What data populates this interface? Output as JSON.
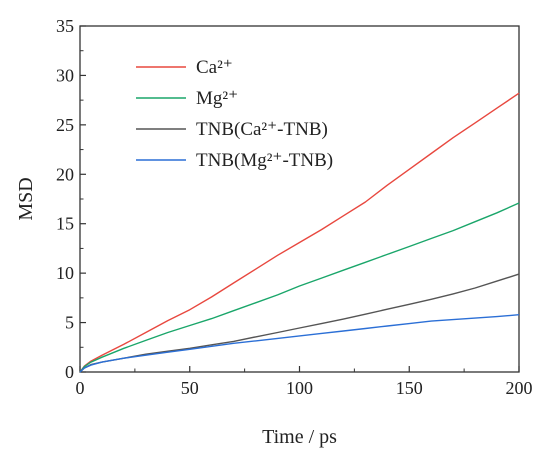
{
  "chart_data": {
    "type": "line",
    "title": "",
    "xlabel": "Time / ps",
    "ylabel": "MSD",
    "xlim": [
      0,
      200
    ],
    "ylim": [
      0,
      35
    ],
    "xticks": [
      0,
      50,
      100,
      150,
      200
    ],
    "yticks": [
      0,
      5,
      10,
      15,
      20,
      25,
      30,
      35
    ],
    "grid": false,
    "legend_position": "top-left",
    "series": [
      {
        "name": "Ca²⁺",
        "color": "#e8483f",
        "x": [
          0,
          2,
          5,
          10,
          20,
          30,
          40,
          50,
          60,
          70,
          80,
          90,
          100,
          110,
          120,
          130,
          140,
          150,
          160,
          170,
          180,
          190,
          200
        ],
        "y": [
          0,
          0.6,
          1.1,
          1.7,
          2.8,
          4.0,
          5.2,
          6.3,
          7.6,
          9.0,
          10.4,
          11.8,
          13.1,
          14.4,
          15.8,
          17.2,
          18.9,
          20.5,
          22.1,
          23.7,
          25.2,
          26.7,
          28.2
        ]
      },
      {
        "name": "Mg²⁺",
        "color": "#1aa66a",
        "x": [
          0,
          2,
          5,
          10,
          20,
          30,
          40,
          50,
          60,
          70,
          80,
          90,
          100,
          110,
          120,
          130,
          140,
          150,
          160,
          170,
          180,
          190,
          200
        ],
        "y": [
          0,
          0.55,
          1.0,
          1.5,
          2.4,
          3.2,
          4.0,
          4.7,
          5.4,
          6.2,
          7.0,
          7.8,
          8.7,
          9.5,
          10.3,
          11.1,
          11.9,
          12.7,
          13.5,
          14.3,
          15.2,
          16.1,
          17.1
        ]
      },
      {
        "name": "TNB(Ca²⁺-TNB)",
        "color": "#555555",
        "x": [
          0,
          2,
          5,
          10,
          20,
          30,
          40,
          50,
          60,
          70,
          80,
          90,
          100,
          110,
          120,
          130,
          140,
          150,
          160,
          170,
          180,
          190,
          200
        ],
        "y": [
          0,
          0.4,
          0.75,
          1.0,
          1.4,
          1.8,
          2.1,
          2.4,
          2.75,
          3.1,
          3.55,
          4.0,
          4.45,
          4.9,
          5.35,
          5.85,
          6.35,
          6.85,
          7.35,
          7.9,
          8.5,
          9.2,
          9.9
        ]
      },
      {
        "name": "TNB(Mg²⁺-TNB)",
        "color": "#2b6fd6",
        "x": [
          0,
          2,
          5,
          10,
          20,
          30,
          40,
          50,
          60,
          70,
          80,
          90,
          100,
          110,
          120,
          130,
          140,
          150,
          160,
          170,
          180,
          190,
          200
        ],
        "y": [
          0,
          0.4,
          0.7,
          1.0,
          1.4,
          1.7,
          2.0,
          2.3,
          2.6,
          2.9,
          3.15,
          3.4,
          3.65,
          3.9,
          4.15,
          4.4,
          4.65,
          4.9,
          5.15,
          5.3,
          5.45,
          5.6,
          5.8
        ]
      }
    ]
  }
}
